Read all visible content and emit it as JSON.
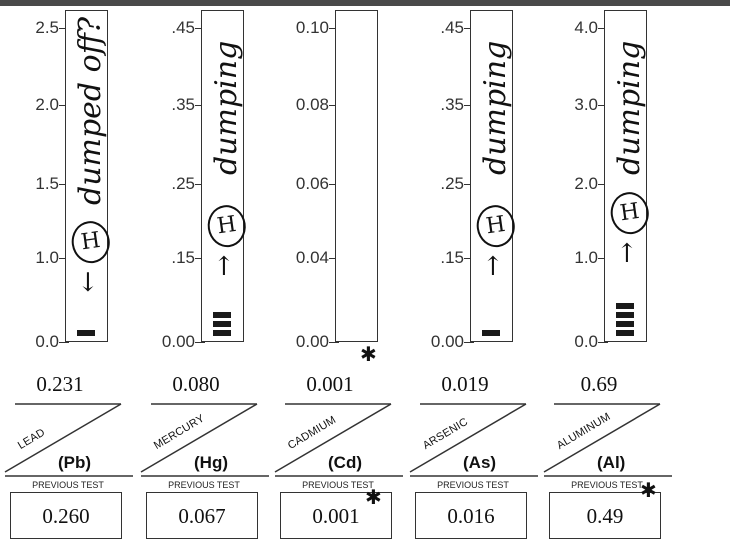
{
  "columns": [
    {
      "element": "LEAD",
      "symbol": "(Pb)",
      "ticks": [
        "2.5",
        "2.0",
        "1.5",
        "1.0",
        "0.0"
      ],
      "tick_values": [
        2.5,
        2.0,
        1.5,
        1.0,
        0.0
      ],
      "max": 2.5,
      "result": "0.231",
      "previous_label": "PREVIOUS TEST",
      "previous_value": "0.260",
      "note": "dumped off?",
      "mark": "H",
      "segments": 1
    },
    {
      "element": "MERCURY",
      "symbol": "(Hg)",
      "ticks": [
        ".45",
        ".35",
        ".25",
        ".15",
        "0.00"
      ],
      "tick_values": [
        0.45,
        0.35,
        0.25,
        0.15,
        0.0
      ],
      "max": 0.45,
      "result": "0.080",
      "previous_label": "PREVIOUS TEST",
      "previous_value": "0.067",
      "note": "dumping",
      "mark": "H",
      "segments": 3
    },
    {
      "element": "CADMIUM",
      "symbol": "(Cd)",
      "ticks": [
        "0.10",
        "0.08",
        "0.06",
        "0.04",
        "0.00"
      ],
      "tick_values": [
        0.1,
        0.08,
        0.06,
        0.04,
        0.0
      ],
      "max": 0.1,
      "result": "0.001",
      "previous_label": "PREVIOUS TEST",
      "previous_value": "0.001",
      "note": "",
      "mark": "",
      "segments": 0
    },
    {
      "element": "ARSENIC",
      "symbol": "(As)",
      "ticks": [
        ".45",
        ".35",
        ".25",
        ".15",
        "0.00"
      ],
      "tick_values": [
        0.45,
        0.35,
        0.25,
        0.15,
        0.0
      ],
      "max": 0.45,
      "result": "0.019",
      "previous_label": "PREVIOUS TEST",
      "previous_value": "0.016",
      "note": "dumping",
      "mark": "H",
      "segments": 1
    },
    {
      "element": "ALUMINUM",
      "symbol": "(Al)",
      "ticks": [
        "4.0",
        "3.0",
        "2.0",
        "1.0",
        "0.0"
      ],
      "tick_values": [
        4.0,
        3.0,
        2.0,
        1.0,
        0.0
      ],
      "max": 4.0,
      "result": "0.69",
      "previous_label": "PREVIOUS TEST",
      "previous_value": "0.49",
      "note": "dumping",
      "mark": "H",
      "segments": 4
    }
  ],
  "asterisk": "✱"
}
